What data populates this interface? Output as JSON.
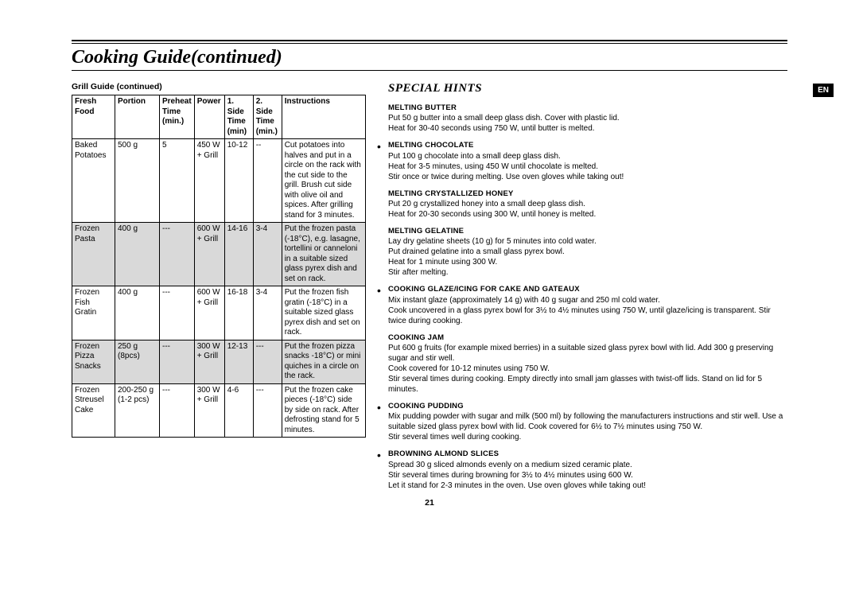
{
  "page": {
    "title": "Cooking Guide(continued)",
    "number": "21",
    "lang_tab": "EN"
  },
  "left": {
    "heading": "Grill Guide (continued)",
    "headers": {
      "c0": "Fresh Food",
      "c1": "Portion",
      "c2": "Preheat Time (min.)",
      "c3": "Power",
      "c4": "1. Side Time (min)",
      "c5": "2. Side Time (min.)",
      "c6": "Instructions"
    },
    "rows": [
      {
        "shade": false,
        "c0": "Baked Potatoes",
        "c1": "500 g",
        "c2": "5",
        "c3": "450 W + Grill",
        "c4": "10-12",
        "c5": "--",
        "c6": "Cut potatoes into halves and put in a circle on the rack with the cut side to the grill. Brush cut side with olive oil and spices. After grilling stand for 3 minutes."
      },
      {
        "shade": true,
        "c0": "Frozen Pasta",
        "c1": "400 g",
        "c2": "---",
        "c3": "600 W + Grill",
        "c4": "14-16",
        "c5": "3-4",
        "c6": "Put the frozen pasta (-18°C), e.g. lasagne, tortellini or canneloni in a suitable sized glass pyrex dish and set on rack."
      },
      {
        "shade": false,
        "c0": "Frozen Fish Gratin",
        "c1": "400 g",
        "c2": "---",
        "c3": "600 W + Grill",
        "c4": "16-18",
        "c5": "3-4",
        "c6": "Put the frozen fish gratin (-18°C) in a suitable sized glass pyrex dish and set on rack."
      },
      {
        "shade": true,
        "c0": "Frozen Pizza Snacks",
        "c1": "250 g (8pcs)",
        "c2": "---",
        "c3": "300 W + Grill",
        "c4": "12-13",
        "c5": "---",
        "c6": "Put the frozen pizza snacks -18°C) or mini quiches in a circle on the rack."
      },
      {
        "shade": false,
        "c0": "Frozen Streusel Cake",
        "c1": "200-250 g (1-2 pcs)",
        "c2": "---",
        "c3": "300 W + Grill",
        "c4": "4-6",
        "c5": "---",
        "c6": "Put the frozen cake pieces (-18°C) side by side on rack. After defrosting stand for 5 minutes."
      }
    ]
  },
  "right": {
    "heading": "SPECIAL HINTS",
    "hints": [
      {
        "title": "MELTING BUTTER",
        "body": "Put 50 g butter into a small deep glass dish. Cover with plastic lid.\nHeat for 30-40 seconds using 750 W, until butter is melted."
      },
      {
        "title": "MELTING CHOCOLATE",
        "body": "Put 100 g chocolate into a small deep glass dish.\nHeat for 3-5 minutes, using 450 W until chocolate is melted.\nStir once or twice during melting. Use oven gloves while taking out!"
      },
      {
        "title": "MELTING CRYSTALLIZED HONEY",
        "body": "Put 20 g crystallized honey into a small deep glass dish.\nHeat for 20-30 seconds using 300 W, until honey is melted."
      },
      {
        "title": "MELTING GELATINE",
        "body": "Lay dry gelatine sheets (10 g) for 5 minutes into cold water.\nPut drained gelatine into a small glass pyrex bowl.\nHeat for 1 minute using 300 W.\nStir after melting."
      },
      {
        "title": "COOKING GLAZE/ICING FOR CAKE AND GATEAUX",
        "body": "Mix instant glaze (approximately 14 g) with 40 g sugar and 250 ml cold water.\nCook uncovered in a glass pyrex bowl for 3½ to 4½ minutes using 750 W, until glaze/icing is transparent. Stir twice during cooking."
      },
      {
        "title": "COOKING JAM",
        "body": "Put 600 g fruits (for example mixed berries) in a suitable sized glass pyrex bowl with lid. Add 300 g preserving sugar and stir well.\nCook covered for 10-12 minutes using 750 W.\nStir several times during cooking. Empty directly into small jam glasses with twist-off lids. Stand on lid for 5 minutes."
      },
      {
        "title": "COOKING PUDDING",
        "body": "Mix pudding powder with sugar and milk (500 ml) by following the manufacturers instructions and stir well. Use a suitable sized glass pyrex bowl with lid. Cook covered for 6½ to 7½ minutes using 750 W.\nStir several times well during cooking."
      },
      {
        "title": "BROWNING ALMOND SLICES",
        "body": "Spread 30 g sliced almonds evenly on a medium sized ceramic plate.\nStir several times during browning for 3½ to 4½ minutes using 600 W.\nLet it stand for 2-3 minutes in the oven. Use oven gloves while taking out!"
      }
    ]
  }
}
